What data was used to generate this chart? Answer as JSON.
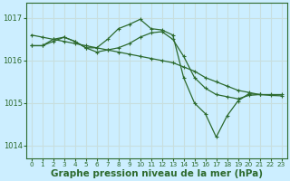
{
  "background_color": "#cceeff",
  "grid_color": "#ddeeee",
  "line_color": "#2d6a2d",
  "xlabel": "Graphe pression niveau de la mer (hPa)",
  "xlabel_fontsize": 7.5,
  "tick_fontsize": 6,
  "ylim": [
    1013.7,
    1017.35
  ],
  "yticks": [
    1014,
    1015,
    1016,
    1017
  ],
  "xlim": [
    -0.5,
    23.5
  ],
  "xticks": [
    0,
    1,
    2,
    3,
    4,
    5,
    6,
    7,
    8,
    9,
    10,
    11,
    12,
    13,
    14,
    15,
    16,
    17,
    18,
    19,
    20,
    21,
    22,
    23
  ],
  "line_straight": {
    "x": [
      0,
      1,
      2,
      3,
      4,
      5,
      6,
      7,
      8,
      9,
      10,
      11,
      12,
      13,
      14,
      15,
      16,
      17,
      18,
      19,
      20,
      21,
      22,
      23
    ],
    "y": [
      1016.6,
      1016.55,
      1016.5,
      1016.45,
      1016.4,
      1016.35,
      1016.3,
      1016.25,
      1016.2,
      1016.15,
      1016.1,
      1016.05,
      1016.0,
      1015.95,
      1015.85,
      1015.75,
      1015.6,
      1015.5,
      1015.4,
      1015.3,
      1015.25,
      1015.2,
      1015.18,
      1015.17
    ]
  },
  "line_peak": {
    "x": [
      0,
      1,
      2,
      3,
      4,
      5,
      6,
      7,
      8,
      9,
      10,
      11,
      12,
      13,
      14,
      15,
      16,
      17,
      18,
      19,
      20,
      21
    ],
    "y": [
      1016.35,
      1016.35,
      1016.5,
      1016.55,
      1016.45,
      1016.3,
      1016.3,
      1016.5,
      1016.75,
      1016.85,
      1016.97,
      1016.75,
      1016.72,
      1016.6,
      1015.6,
      1015.0,
      1014.75,
      1014.2,
      1014.7,
      1015.05,
      1015.22,
      1015.2
    ]
  },
  "line_mid": {
    "x": [
      0,
      1,
      2,
      3,
      4,
      5,
      6,
      7,
      8,
      9,
      10,
      11,
      12,
      13,
      14,
      15,
      16,
      17,
      18,
      19,
      20,
      21,
      22,
      23
    ],
    "y": [
      1016.35,
      1016.35,
      1016.45,
      1016.55,
      1016.45,
      1016.3,
      1016.2,
      1016.25,
      1016.3,
      1016.4,
      1016.55,
      1016.65,
      1016.68,
      1016.5,
      1016.1,
      1015.6,
      1015.35,
      1015.2,
      1015.15,
      1015.1,
      1015.18,
      1015.2,
      1015.2,
      1015.2
    ]
  }
}
